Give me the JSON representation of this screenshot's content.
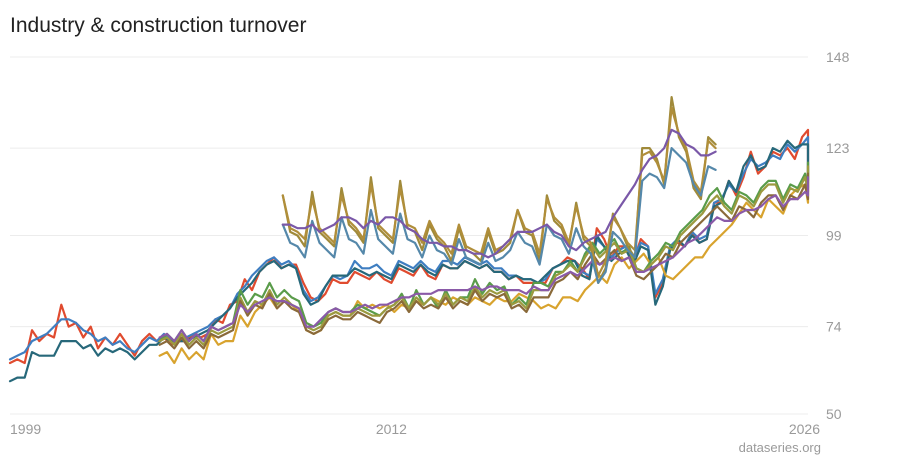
{
  "chart_data": {
    "type": "line",
    "title": "Industry & construction turnover",
    "source": "dataseries.org",
    "x_ticks": [
      1999,
      2012,
      2026
    ],
    "x_range": [
      1999,
      2026.2
    ],
    "y_ticks": [
      50,
      74,
      99,
      123,
      148
    ],
    "ylim": [
      50,
      148
    ],
    "grid": "horizontal",
    "legend": "none",
    "series": [
      {
        "color": "#e04b2f",
        "start": 1999.0,
        "step": 0.25,
        "values": [
          64,
          65,
          64,
          73,
          70,
          72,
          71,
          80,
          74,
          75,
          71,
          74,
          68,
          71,
          69,
          72,
          69,
          66,
          70,
          72,
          70,
          71,
          69,
          70,
          70,
          72,
          71,
          72,
          76,
          75,
          80,
          81,
          87,
          84,
          89,
          91,
          93,
          90,
          91,
          91,
          86,
          82,
          81,
          83,
          87,
          86,
          86,
          89,
          88,
          87,
          89,
          87,
          86,
          90,
          89,
          88,
          91,
          88,
          87,
          91,
          90,
          90,
          92,
          91,
          90,
          91,
          89,
          89,
          87,
          88,
          86,
          86,
          86,
          86,
          90,
          91,
          93,
          92,
          90,
          87,
          101,
          98,
          93,
          96,
          96,
          92,
          98,
          96,
          82,
          86,
          96,
          97,
          96,
          100,
          97,
          98,
          108,
          108,
          114,
          110,
          115,
          122,
          116,
          118,
          122,
          121,
          123,
          120,
          126,
          128,
          124,
          120,
          115,
          119,
          118
        ]
      },
      {
        "color": "#3f7ec1",
        "start": 1999.0,
        "step": 0.25,
        "values": [
          65,
          66,
          67,
          70,
          71,
          72,
          74,
          76,
          76,
          75,
          73,
          72,
          70,
          71,
          69,
          70,
          68,
          67,
          69,
          71,
          70,
          72,
          70,
          70,
          71,
          72,
          73,
          74,
          76,
          77,
          79,
          83,
          85,
          88,
          90,
          92,
          93,
          91,
          92,
          90,
          84,
          81,
          82,
          85,
          88,
          87,
          88,
          92,
          90,
          90,
          91,
          89,
          88,
          92,
          91,
          90,
          92,
          90,
          89,
          92,
          92,
          91,
          93,
          92,
          91,
          92,
          90,
          90,
          88,
          88,
          87,
          87,
          86,
          87,
          90,
          91,
          92,
          92,
          89,
          88,
          98,
          96,
          93,
          95,
          96,
          93,
          97,
          96,
          83,
          87,
          96,
          98,
          96,
          100,
          98,
          99,
          108,
          109,
          113,
          111,
          116,
          120,
          118,
          119,
          121,
          120,
          124,
          122,
          124,
          126,
          123,
          120,
          116,
          118,
          116
        ]
      },
      {
        "color": "#27687a",
        "start": 1999.0,
        "step": 0.25,
        "values": [
          59,
          60,
          60,
          67,
          66,
          66,
          66,
          70,
          70,
          70,
          68,
          69,
          66,
          68,
          67,
          68,
          67,
          65,
          67,
          69,
          69,
          71,
          70,
          70,
          70,
          71,
          72,
          73,
          75,
          77,
          79,
          82,
          84,
          86,
          89,
          91,
          92,
          90,
          91,
          90,
          83,
          80,
          81,
          85,
          88,
          88,
          88,
          90,
          89,
          88,
          89,
          88,
          87,
          91,
          90,
          89,
          91,
          89,
          88,
          91,
          90,
          90,
          92,
          91,
          90,
          91,
          89,
          89,
          87,
          88,
          87,
          87,
          86,
          88,
          90,
          91,
          92,
          92,
          88,
          87,
          99,
          96,
          92,
          94,
          95,
          91,
          96,
          95,
          80,
          85,
          95,
          98,
          96,
          99,
          97,
          98,
          107,
          108,
          114,
          111,
          118,
          121,
          117,
          118,
          123,
          122,
          125,
          123,
          124,
          124,
          121,
          118,
          114,
          116,
          115
        ]
      },
      {
        "color": "#d8a32e",
        "start": 2004.1,
        "step": 0.25,
        "values": [
          66,
          67,
          64,
          68,
          65,
          67,
          65,
          72,
          69,
          70,
          70,
          77,
          74,
          78,
          80,
          82,
          79,
          81,
          80,
          78,
          73,
          72,
          73,
          77,
          78,
          77,
          77,
          81,
          79,
          80,
          79,
          80,
          78,
          80,
          79,
          81,
          80,
          82,
          81,
          80,
          82,
          81,
          80,
          82,
          81,
          80,
          82,
          81,
          81,
          83,
          82,
          81,
          79,
          80,
          79,
          82,
          82,
          81,
          84,
          86,
          88,
          86,
          91,
          93,
          90,
          92,
          94,
          91,
          93,
          88,
          87,
          89,
          91,
          93,
          93,
          96,
          98,
          100,
          102,
          105,
          108,
          106,
          104,
          109,
          107,
          105,
          110,
          112,
          113,
          108,
          112,
          111,
          114,
          110,
          112,
          115,
          117,
          112,
          114,
          111,
          112
        ]
      },
      {
        "color": "#5a9c4a",
        "start": 2004.1,
        "step": 0.25,
        "values": [
          70,
          72,
          70,
          73,
          70,
          72,
          70,
          74,
          73,
          74,
          75,
          84,
          80,
          83,
          82,
          86,
          82,
          84,
          82,
          81,
          75,
          74,
          75,
          78,
          79,
          78,
          78,
          80,
          79,
          78,
          77,
          79,
          80,
          83,
          79,
          84,
          80,
          82,
          79,
          84,
          80,
          82,
          82,
          87,
          83,
          86,
          84,
          85,
          80,
          82,
          80,
          86,
          86,
          85,
          89,
          89,
          92,
          89,
          94,
          97,
          94,
          96,
          98,
          94,
          96,
          90,
          89,
          92,
          94,
          97,
          96,
          100,
          102,
          104,
          106,
          110,
          112,
          108,
          106,
          111,
          110,
          108,
          112,
          114,
          114,
          109,
          113,
          112,
          116,
          112,
          114,
          117,
          119,
          114,
          116,
          113,
          112
        ]
      },
      {
        "color": "#9b9a3f",
        "start": 2004.1,
        "step": 0.25,
        "values": [
          70,
          71,
          69,
          72,
          69,
          71,
          69,
          73,
          72,
          73,
          74,
          82,
          78,
          81,
          80,
          84,
          80,
          82,
          80,
          79,
          74,
          73,
          74,
          77,
          78,
          77,
          77,
          79,
          78,
          77,
          77,
          79,
          80,
          82,
          79,
          82,
          80,
          82,
          80,
          83,
          80,
          82,
          81,
          85,
          82,
          84,
          83,
          84,
          80,
          81,
          79,
          84,
          84,
          84,
          88,
          89,
          91,
          89,
          93,
          96,
          93,
          95,
          97,
          94,
          95,
          90,
          89,
          91,
          93,
          96,
          95,
          99,
          101,
          103,
          105,
          108,
          110,
          107,
          105,
          110,
          109,
          107,
          111,
          113,
          113,
          108,
          112,
          111,
          115,
          111,
          113,
          116,
          118,
          114,
          115,
          112,
          112
        ]
      },
      {
        "color": "#8a6a3a",
        "start": 2004.1,
        "step": 0.25,
        "values": [
          69,
          70,
          68,
          71,
          68,
          70,
          68,
          72,
          71,
          72,
          73,
          81,
          77,
          80,
          79,
          83,
          79,
          81,
          79,
          78,
          73,
          72,
          73,
          76,
          77,
          76,
          76,
          78,
          77,
          76,
          75,
          78,
          79,
          81,
          78,
          81,
          79,
          80,
          79,
          82,
          79,
          81,
          80,
          84,
          81,
          83,
          82,
          83,
          79,
          80,
          78,
          82,
          82,
          82,
          86,
          87,
          89,
          87,
          91,
          94,
          91,
          93,
          95,
          92,
          93,
          88,
          87,
          89,
          91,
          94,
          93,
          97,
          99,
          101,
          103,
          105,
          107,
          105,
          103,
          107,
          106,
          104,
          108,
          110,
          110,
          106,
          110,
          109,
          113,
          109,
          111,
          114,
          116,
          112,
          113,
          110,
          110
        ]
      },
      {
        "color": "#8a5aa8",
        "start": 2004.1,
        "step": 0.25,
        "values": [
          71,
          72,
          70,
          73,
          70,
          72,
          70,
          74,
          73,
          74,
          75,
          80,
          78,
          80,
          81,
          82,
          81,
          81,
          80,
          79,
          74,
          74,
          76,
          78,
          79,
          78,
          78,
          79,
          80,
          79,
          80,
          80,
          81,
          82,
          82,
          83,
          83,
          83,
          84,
          84,
          84,
          84,
          84,
          85,
          84,
          85,
          85,
          84,
          84,
          84,
          83,
          85,
          84,
          84,
          87,
          88,
          89,
          88,
          90,
          92,
          91,
          92,
          93,
          92,
          93,
          89,
          89,
          90,
          91,
          92,
          93,
          95,
          97,
          98,
          100,
          102,
          104,
          103,
          103,
          105,
          106,
          106,
          107,
          109,
          110,
          107,
          109,
          109,
          111,
          110,
          111,
          113,
          115,
          112,
          113,
          110,
          110
        ]
      },
      {
        "color": "#a08a3a",
        "start": 2008.3,
        "step": 0.25,
        "values": [
          110,
          100,
          99,
          96,
          111,
          100,
          98,
          96,
          112,
          102,
          100,
          97,
          115,
          101,
          99,
          97,
          114,
          101,
          100,
          95,
          102,
          98,
          96,
          92,
          101,
          95,
          94,
          92,
          100,
          94,
          95,
          97,
          106,
          100,
          99,
          92,
          110,
          103,
          101,
          96,
          108,
          98,
          96,
          86,
          90,
          105,
          101,
          96,
          93,
          123,
          123,
          120,
          113,
          137,
          126,
          122,
          112,
          109,
          126,
          124
        ]
      },
      {
        "color": "#b08e3a",
        "start": 2008.3,
        "step": 0.25,
        "values": [
          110,
          101,
          100,
          98,
          109,
          101,
          99,
          97,
          110,
          103,
          101,
          98,
          113,
          102,
          100,
          98,
          112,
          102,
          101,
          97,
          103,
          99,
          97,
          94,
          102,
          96,
          95,
          94,
          101,
          95,
          96,
          98,
          106,
          101,
          100,
          94,
          109,
          104,
          102,
          97,
          107,
          99,
          97,
          88,
          92,
          104,
          101,
          97,
          95,
          121,
          122,
          119,
          114,
          134,
          127,
          123,
          114,
          111,
          125,
          123
        ]
      },
      {
        "color": "#5588aa",
        "start": 2008.3,
        "step": 0.25,
        "values": [
          102,
          97,
          96,
          93,
          103,
          97,
          95,
          93,
          104,
          98,
          97,
          94,
          106,
          98,
          96,
          94,
          105,
          98,
          97,
          93,
          99,
          95,
          94,
          91,
          98,
          93,
          92,
          91,
          97,
          92,
          93,
          95,
          100,
          97,
          96,
          91,
          102,
          99,
          98,
          94,
          101,
          96,
          94,
          86,
          89,
          100,
          98,
          95,
          93,
          114,
          116,
          115,
          112,
          123,
          121,
          119,
          113,
          110,
          118,
          117
        ]
      },
      {
        "color": "#7a58a8",
        "start": 2008.3,
        "step": 0.25,
        "values": [
          102,
          102,
          101,
          101,
          102,
          100,
          101,
          102,
          104,
          104,
          103,
          101,
          103,
          102,
          104,
          104,
          103,
          101,
          100,
          98,
          97,
          97,
          96,
          96,
          95,
          95,
          94,
          94,
          93,
          94,
          96,
          98,
          100,
          100,
          100,
          101,
          102,
          100,
          99,
          96,
          95,
          97,
          98,
          99,
          100,
          104,
          107,
          110,
          113,
          117,
          120,
          121,
          123,
          128,
          127,
          124,
          123,
          121,
          121,
          122
        ]
      }
    ]
  }
}
